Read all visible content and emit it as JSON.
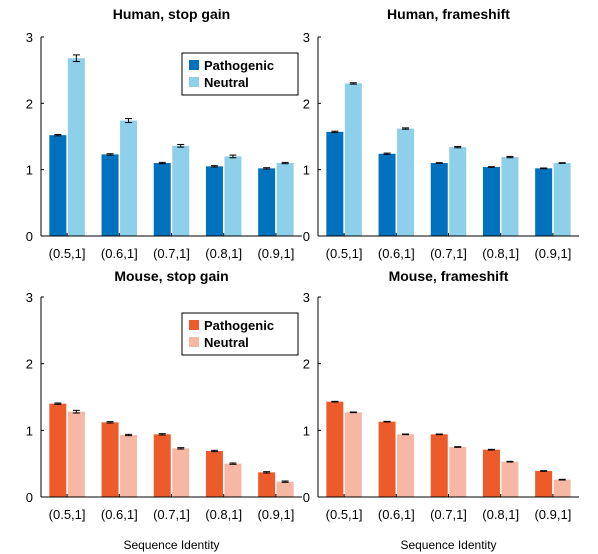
{
  "chart_data": [
    {
      "type": "bar",
      "title": "Human, stop gain",
      "categories": [
        "(0.5,1]",
        "(0.6,1]",
        "(0.7,1]",
        "(0.8,1]",
        "(0.9,1]"
      ],
      "series": [
        {
          "name": "Pathogenic",
          "values": [
            1.52,
            1.23,
            1.1,
            1.05,
            1.02
          ],
          "errors": [
            0.01,
            0.01,
            0.01,
            0.01,
            0.01
          ],
          "color": "#0072BD"
        },
        {
          "name": "Neutral",
          "values": [
            2.68,
            1.74,
            1.36,
            1.2,
            1.1
          ],
          "errors": [
            0.05,
            0.03,
            0.02,
            0.02,
            0.01
          ],
          "color": "#8ECFEA"
        }
      ],
      "ylim": [
        0,
        3
      ],
      "yticks": [
        "0",
        "1",
        "2",
        "3"
      ],
      "xlabel": "",
      "legend": "top-right",
      "grid": false
    },
    {
      "type": "bar",
      "title": "Human, frameshift",
      "categories": [
        "(0.5,1]",
        "(0.6,1]",
        "(0.7,1]",
        "(0.8,1]",
        "(0.9,1]"
      ],
      "series": [
        {
          "name": "Pathogenic",
          "values": [
            1.57,
            1.24,
            1.1,
            1.04,
            1.02
          ],
          "errors": [
            0.01,
            0.01,
            0.005,
            0.005,
            0.005
          ],
          "color": "#0072BD"
        },
        {
          "name": "Neutral",
          "values": [
            2.3,
            1.62,
            1.34,
            1.19,
            1.1
          ],
          "errors": [
            0.01,
            0.01,
            0.01,
            0.01,
            0.005
          ],
          "color": "#8ECFEA"
        }
      ],
      "ylim": [
        0,
        3
      ],
      "yticks": [
        "0",
        "1",
        "2",
        "3"
      ],
      "xlabel": "",
      "legend": "none",
      "grid": false
    },
    {
      "type": "bar",
      "title": "Mouse, stop gain",
      "categories": [
        "(0.5,1]",
        "(0.6,1]",
        "(0.7,1]",
        "(0.8,1]",
        "(0.9,1]"
      ],
      "series": [
        {
          "name": "Pathogenic",
          "values": [
            1.4,
            1.12,
            0.94,
            0.69,
            0.37
          ],
          "errors": [
            0.01,
            0.01,
            0.01,
            0.01,
            0.01
          ],
          "color": "#EE5B2B"
        },
        {
          "name": "Neutral",
          "values": [
            1.28,
            0.93,
            0.73,
            0.5,
            0.23
          ],
          "errors": [
            0.02,
            0.01,
            0.01,
            0.01,
            0.01
          ],
          "color": "#F6B8A4"
        }
      ],
      "ylim": [
        0,
        3
      ],
      "yticks": [
        "0",
        "1",
        "2",
        "3"
      ],
      "xlabel": "Sequence Identity",
      "legend": "top-right",
      "grid": false
    },
    {
      "type": "bar",
      "title": "Mouse, frameshift",
      "categories": [
        "(0.5,1]",
        "(0.6,1]",
        "(0.7,1]",
        "(0.8,1]",
        "(0.9,1]"
      ],
      "series": [
        {
          "name": "Pathogenic",
          "values": [
            1.43,
            1.13,
            0.94,
            0.71,
            0.39
          ],
          "errors": [
            0.005,
            0.005,
            0.005,
            0.005,
            0.005
          ],
          "color": "#EE5B2B"
        },
        {
          "name": "Neutral",
          "values": [
            1.27,
            0.94,
            0.75,
            0.53,
            0.26
          ],
          "errors": [
            0.005,
            0.005,
            0.005,
            0.005,
            0.005
          ],
          "color": "#F6B8A4"
        }
      ],
      "ylim": [
        0,
        3
      ],
      "yticks": [
        "0",
        "1",
        "2",
        "3"
      ],
      "xlabel": "Sequence Identity",
      "legend": "none",
      "grid": false
    }
  ]
}
